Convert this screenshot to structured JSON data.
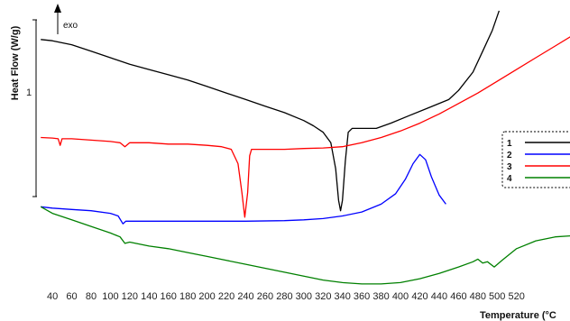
{
  "chart_data": {
    "type": "line",
    "title": "",
    "xlabel": "Temperature (°C",
    "ylabel": "Heat Flow (W/g)",
    "exo_label": "exo",
    "y_scale_label": "1",
    "xlim": [
      25,
      580
    ],
    "ylim": [
      0,
      10
    ],
    "x_ticks": [
      40,
      60,
      80,
      100,
      120,
      140,
      160,
      180,
      200,
      220,
      240,
      260,
      280,
      300,
      320,
      340,
      360,
      380,
      400,
      420,
      440,
      460,
      480,
      500,
      520
    ],
    "x_tick_labels": [
      "40",
      "60",
      "80",
      "100",
      "120",
      "140",
      "160",
      "180",
      "200",
      "220",
      "240",
      "260",
      "280",
      "300",
      "320",
      "340",
      "360",
      "380",
      "400",
      "420",
      "440",
      "460",
      "480",
      "500",
      "520"
    ],
    "legend": {
      "placement": "right",
      "entries": [
        {
          "label": "1",
          "color": "#000000"
        },
        {
          "label": "2",
          "color": "#0000ff"
        },
        {
          "label": "3",
          "color": "#ff0000"
        },
        {
          "label": "4",
          "color": "#008000"
        }
      ]
    },
    "series": [
      {
        "key": "1",
        "color": "#000000",
        "points": [
          [
            28,
            9.25
          ],
          [
            40,
            9.2
          ],
          [
            60,
            9.05
          ],
          [
            80,
            8.8
          ],
          [
            100,
            8.55
          ],
          [
            120,
            8.3
          ],
          [
            140,
            8.1
          ],
          [
            160,
            7.9
          ],
          [
            180,
            7.7
          ],
          [
            200,
            7.45
          ],
          [
            220,
            7.2
          ],
          [
            240,
            6.95
          ],
          [
            260,
            6.7
          ],
          [
            280,
            6.45
          ],
          [
            300,
            6.15
          ],
          [
            310,
            5.95
          ],
          [
            320,
            5.7
          ],
          [
            328,
            5.3
          ],
          [
            333,
            4.3
          ],
          [
            336,
            3.1
          ],
          [
            338,
            2.7
          ],
          [
            340,
            3.1
          ],
          [
            343,
            4.6
          ],
          [
            346,
            5.7
          ],
          [
            350,
            5.85
          ],
          [
            360,
            5.85
          ],
          [
            375,
            5.85
          ],
          [
            390,
            6.05
          ],
          [
            410,
            6.35
          ],
          [
            430,
            6.65
          ],
          [
            450,
            6.95
          ],
          [
            460,
            7.3
          ],
          [
            475,
            8.0
          ],
          [
            485,
            8.8
          ],
          [
            495,
            9.6
          ],
          [
            502,
            10.35
          ]
        ]
      },
      {
        "key": "2",
        "color": "#0000ff",
        "points": [
          [
            28,
            2.85
          ],
          [
            40,
            2.8
          ],
          [
            60,
            2.75
          ],
          [
            80,
            2.7
          ],
          [
            100,
            2.6
          ],
          [
            108,
            2.5
          ],
          [
            113,
            2.2
          ],
          [
            116,
            2.3
          ],
          [
            125,
            2.3
          ],
          [
            160,
            2.3
          ],
          [
            200,
            2.3
          ],
          [
            240,
            2.3
          ],
          [
            280,
            2.32
          ],
          [
            300,
            2.35
          ],
          [
            320,
            2.4
          ],
          [
            340,
            2.5
          ],
          [
            360,
            2.65
          ],
          [
            380,
            2.95
          ],
          [
            395,
            3.35
          ],
          [
            405,
            3.9
          ],
          [
            413,
            4.5
          ],
          [
            420,
            4.85
          ],
          [
            426,
            4.65
          ],
          [
            432,
            4.0
          ],
          [
            440,
            3.3
          ],
          [
            447,
            2.95
          ]
        ]
      },
      {
        "key": "3",
        "color": "#ff0000",
        "points": [
          [
            28,
            5.5
          ],
          [
            40,
            5.48
          ],
          [
            46,
            5.45
          ],
          [
            48,
            5.2
          ],
          [
            50,
            5.45
          ],
          [
            60,
            5.45
          ],
          [
            80,
            5.4
          ],
          [
            100,
            5.35
          ],
          [
            110,
            5.3
          ],
          [
            115,
            5.15
          ],
          [
            120,
            5.3
          ],
          [
            140,
            5.3
          ],
          [
            160,
            5.25
          ],
          [
            180,
            5.25
          ],
          [
            200,
            5.2
          ],
          [
            215,
            5.15
          ],
          [
            225,
            5.05
          ],
          [
            232,
            4.5
          ],
          [
            236,
            3.4
          ],
          [
            239,
            2.45
          ],
          [
            242,
            3.4
          ],
          [
            244,
            4.8
          ],
          [
            246,
            5.05
          ],
          [
            260,
            5.05
          ],
          [
            280,
            5.05
          ],
          [
            300,
            5.08
          ],
          [
            320,
            5.1
          ],
          [
            340,
            5.15
          ],
          [
            360,
            5.3
          ],
          [
            380,
            5.5
          ],
          [
            400,
            5.75
          ],
          [
            420,
            6.05
          ],
          [
            440,
            6.4
          ],
          [
            460,
            6.8
          ],
          [
            480,
            7.2
          ],
          [
            500,
            7.65
          ],
          [
            520,
            8.1
          ],
          [
            540,
            8.55
          ],
          [
            560,
            9.0
          ],
          [
            580,
            9.45
          ]
        ]
      },
      {
        "key": "4",
        "color": "#008000",
        "points": [
          [
            28,
            2.85
          ],
          [
            40,
            2.6
          ],
          [
            60,
            2.35
          ],
          [
            80,
            2.1
          ],
          [
            100,
            1.85
          ],
          [
            110,
            1.7
          ],
          [
            115,
            1.45
          ],
          [
            120,
            1.5
          ],
          [
            140,
            1.35
          ],
          [
            160,
            1.25
          ],
          [
            180,
            1.1
          ],
          [
            200,
            0.95
          ],
          [
            220,
            0.8
          ],
          [
            240,
            0.65
          ],
          [
            260,
            0.5
          ],
          [
            280,
            0.35
          ],
          [
            300,
            0.2
          ],
          [
            320,
            0.05
          ],
          [
            340,
            -0.05
          ],
          [
            360,
            -0.1
          ],
          [
            380,
            -0.1
          ],
          [
            400,
            -0.05
          ],
          [
            420,
            0.1
          ],
          [
            440,
            0.3
          ],
          [
            460,
            0.55
          ],
          [
            475,
            0.75
          ],
          [
            480,
            0.85
          ],
          [
            485,
            0.7
          ],
          [
            490,
            0.75
          ],
          [
            497,
            0.55
          ],
          [
            505,
            0.8
          ],
          [
            520,
            1.25
          ],
          [
            540,
            1.55
          ],
          [
            560,
            1.7
          ],
          [
            580,
            1.75
          ]
        ]
      }
    ]
  }
}
